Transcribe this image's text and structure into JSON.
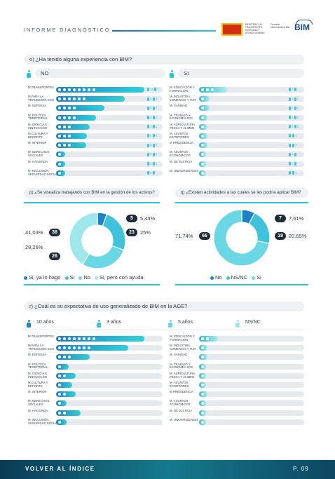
{
  "header": {
    "title": "INFORME DIAGNÓSTICO",
    "logo_text_1": "GOBIERNO DE ESPAÑA",
    "logo_text_2": "MINISTERIO DE TRANSPORTES, MOVILIDAD Y AGENDA URBANA",
    "logo_text_3": "Comisión Interministerial BIM",
    "bim": "BIM"
  },
  "q_o": {
    "title": "o) ¿Ha tenido alguna experiencia con BIM?",
    "no": "NO",
    "si": "SI",
    "left": [
      {
        "label": "M.TRANSPORTES",
        "v": 1.0,
        "n": [
          "15",
          "7"
        ]
      },
      {
        "label": "M.PARA LA TRANSICIÓN ECO",
        "v": 0.78,
        "n": [
          "3",
          "4"
        ]
      },
      {
        "label": "M. DEFENSA",
        "v": 0.55,
        "n": [
          "5",
          "2"
        ]
      },
      {
        "label": "M. POLÍTICA TERRITORIAL",
        "v": 0.45,
        "n": [
          "3",
          "1"
        ]
      },
      {
        "label": "M. CIENCIA E INNOVACIÓN",
        "v": 0.38,
        "n": [
          "3",
          "1"
        ]
      },
      {
        "label": "M.CULTURA Y DEPORTE",
        "v": 0.35,
        "n": [
          "4",
          "5"
        ]
      },
      {
        "label": "M. INTERIOR",
        "v": 0.34,
        "n": [
          "3",
          "2"
        ]
      },
      {
        "label": "M. DERECHOS SOCIALES",
        "v": 0.1,
        "n": [
          "2",
          "3"
        ]
      },
      {
        "label": "M. HACIENDA",
        "v": 0.1,
        "n": [
          "2",
          "4"
        ]
      },
      {
        "label": "M. INCLUSIÓN, SEGURIDAD SOCIAL",
        "v": 0.1,
        "n": [
          "2",
          ""
        ]
      }
    ],
    "right": [
      {
        "label": "M. EDUCACIÓN Y FORMACIÓN",
        "v": 0.32,
        "n": [
          "3",
          ""
        ]
      },
      {
        "label": "M. INDUSTRIA, COMERCIO Y TUR",
        "v": 0.12,
        "n": [
          "1",
          "1"
        ]
      },
      {
        "label": "M. SANIDAD",
        "v": 0.12,
        "n": [
          "2",
          "1"
        ]
      },
      {
        "label": "M. TRABAJO Y ECONOMÍA SOC",
        "v": 0.1,
        "n": [
          "2",
          "1"
        ]
      },
      {
        "label": "M. AGRICULTURA PESCA Y ALIMEN",
        "v": 0.1,
        "n": [
          "2",
          "1"
        ]
      },
      {
        "label": "M. ASUNTOS EXTERIORES",
        "v": 0.1,
        "n": [
          "",
          "1"
        ]
      },
      {
        "label": "M.PRESIDENCIA",
        "v": 0.1,
        "n": [
          "",
          "2"
        ]
      },
      {
        "label": "M. ASUNTOS ECONÓMICOS",
        "v": 0.08,
        "n": [
          "1",
          ""
        ]
      },
      {
        "label": "M. DE JUSTICIA",
        "v": 0.08,
        "n": [
          "1",
          ""
        ]
      },
      {
        "label": "M. UNIVERSIDADES",
        "v": 0.06,
        "n": [
          "",
          "1"
        ]
      }
    ]
  },
  "q_p": {
    "title": "p) ¿Se visualiza trabajando con BIM en la gestión de los activos?",
    "chart_data": {
      "type": "pie",
      "categories": [
        "Si, ya lo hago",
        "Si",
        "No",
        "Si, pero con ayuda"
      ],
      "counts": [
        5,
        23,
        26,
        38
      ],
      "values": [
        5.43,
        25,
        28.26,
        41.03
      ],
      "colors": [
        "#1f82c8",
        "#3fc3dc",
        "#6ad8e4",
        "#9ee8ec"
      ]
    },
    "labels": {
      "a_n": "5",
      "a_p": "5,43%",
      "b_n": "23",
      "b_p": "25%",
      "c_n": "26",
      "c_p": "28,26%",
      "d_n": "38",
      "d_p": "41,03%"
    },
    "legend": [
      "Si, ya lo hago",
      "Si",
      "No",
      "Si, pero con ayuda"
    ]
  },
  "q_q": {
    "title": "q) ¿Existen actividades a las cuales se les podría aplicar BIM?",
    "chart_data": {
      "type": "pie",
      "categories": [
        "No",
        "NS/NC",
        "Si"
      ],
      "counts": [
        7,
        19,
        66
      ],
      "values": [
        7.61,
        20.65,
        71.74
      ],
      "colors": [
        "#1f82c8",
        "#3fc3dc",
        "#6ad8e4"
      ]
    },
    "labels": {
      "a_n": "7",
      "a_p": "7,61%",
      "b_n": "19",
      "b_p": "20,65%",
      "c_n": "66",
      "c_p": "71,74%"
    },
    "legend": [
      "No",
      "NS/NC",
      "Si"
    ]
  },
  "q_r": {
    "title": "r) ¿Cuál es su expectativa de uso generalizado de BIM en la AGE?",
    "opts": [
      "10 años",
      "3 años",
      "5 años",
      "NS/NC"
    ],
    "left": [
      {
        "label": "M.TRANSPORTES",
        "v": 1.0
      },
      {
        "label": "M.PARA LA TRANSICIÓN ECO",
        "v": 0.82
      },
      {
        "label": "M. DEFENSA",
        "v": 0.38
      },
      {
        "label": "M. POLÍTICA TERRITORIAL",
        "v": 0.14
      },
      {
        "label": "M. CIENCIA E INNOVACIÓN",
        "v": 0.22
      },
      {
        "label": "M.CULTURA Y DEPORTE",
        "v": 0.18
      },
      {
        "label": "M. INTERIOR",
        "v": 0.22
      },
      {
        "label": "M. DERECHOS SOCIALES",
        "v": 0.12
      },
      {
        "label": "M. HACIENDA",
        "v": 0.28
      },
      {
        "label": "M. INCLUSIÓN, SEGURIDAD SOCIAL",
        "v": 0.12
      }
    ],
    "right": [
      {
        "label": "M. EDUCACIÓN Y FORMACIÓN",
        "v": 0.22
      },
      {
        "label": "M. INDUSTRIA, COMERCIO Y TUR",
        "v": 0.1
      },
      {
        "label": "M. SANIDAD",
        "v": 0.1
      },
      {
        "label": "M. TRABAJO Y ECONOMÍA SOC",
        "v": 0.08
      },
      {
        "label": "M. AGRICULTURA PESCA Y ALIMEN",
        "v": 0.08
      },
      {
        "label": "M. ASUNTOS EXTERIORES",
        "v": 0.08
      },
      {
        "label": "M.PRESIDENCIA",
        "v": 0.1
      },
      {
        "label": "M. ASUNTOS ECONÓMICOS",
        "v": 0.08
      },
      {
        "label": "M. DE JUSTICIA",
        "v": 0.06
      },
      {
        "label": "M. UNIVERSIDADES",
        "v": 0.06
      }
    ]
  },
  "footer": {
    "back": "VOLVER AL ÍNDICE",
    "page": "P. 09"
  }
}
